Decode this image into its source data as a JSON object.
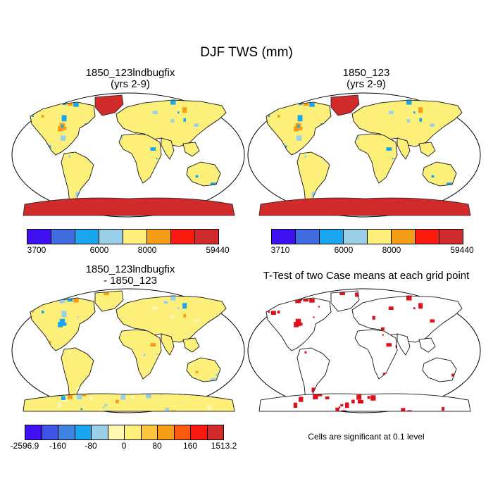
{
  "figure": {
    "title": "DJF TWS (mm)"
  },
  "panels": [
    {
      "title_line1": "1850_123lndbugfix",
      "title_line2": "(yrs 2-9)",
      "colorbar": {
        "colors": [
          "#3f10f0",
          "#3f6de0",
          "#1aa6ef",
          "#99cfe8",
          "#fdf07a",
          "#f59d16",
          "#fb1a0f",
          "#d12a2a"
        ],
        "labels": [
          "3700",
          "6000",
          "8000",
          "59440"
        ]
      }
    },
    {
      "title_line1": "1850_123",
      "title_line2": "(yrs 2-9)",
      "colorbar": {
        "colors": [
          "#3f10f0",
          "#3f6de0",
          "#1aa6ef",
          "#99cfe8",
          "#fdf07a",
          "#f59d16",
          "#fb1a0f",
          "#d12a2a"
        ],
        "labels": [
          "3710",
          "6000",
          "8000",
          "59440"
        ]
      }
    },
    {
      "title_line1": "1850_123lndbugfix",
      "title_line2": "- 1850_123",
      "colorbar": {
        "colors": [
          "#3f10f0",
          "#3f55e6",
          "#3f84e4",
          "#1aa6ef",
          "#99cfe8",
          "#fdf9b0",
          "#fdf07a",
          "#fbc53c",
          "#f59d16",
          "#fb5a0f",
          "#fb1a0f",
          "#d12a2a"
        ],
        "labels": [
          "-2596.9",
          "-160",
          "-80",
          "0",
          "80",
          "160",
          "1513.2"
        ]
      }
    },
    {
      "title_line1": "T-Test of two Case means at each grid point",
      "note": "Cells are significant at 0.1 level"
    }
  ]
}
